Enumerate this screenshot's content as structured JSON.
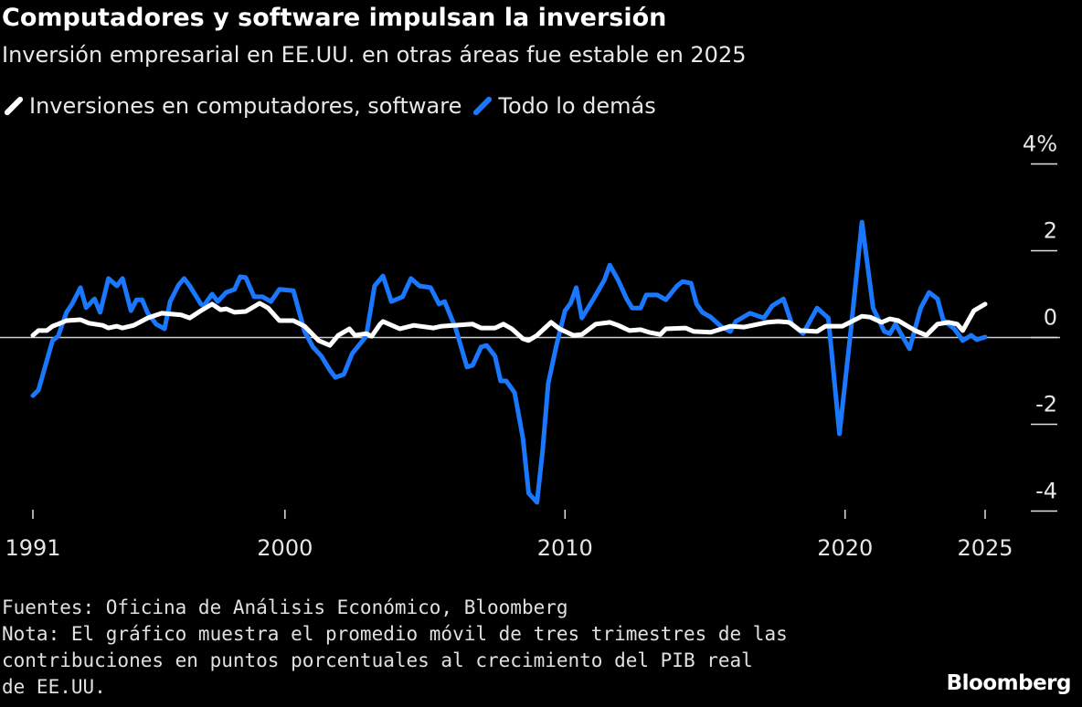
{
  "chart_data": {
    "type": "line",
    "title": "Computadores y software impulsan la inversión",
    "subtitle": "Inversión empresarial en EE.UU. en otras áreas fue estable en 2025",
    "xlabel": "",
    "ylabel": "",
    "xlim": [
      1991,
      2025
    ],
    "ylim": [
      -4,
      4
    ],
    "y_unit": "%",
    "x_ticks": [
      "1991",
      "2000",
      "2010",
      "2020",
      "2025"
    ],
    "x_tick_values": [
      1991,
      2000,
      2010,
      2020,
      2025
    ],
    "y_ticks": [
      "4%",
      "2",
      "0",
      "-2",
      "-4"
    ],
    "y_tick_values": [
      4,
      2,
      0,
      -2,
      -4
    ],
    "grid": false,
    "zero_line": true,
    "legend_position": "top-left",
    "series": [
      {
        "name": "Inversiones en computadores, software",
        "color": "#ffffff",
        "x": [
          1991.0,
          1991.2,
          1991.5,
          1991.7,
          1991.9,
          1992.2,
          1992.7,
          1993.0,
          1993.5,
          1993.7,
          1994.0,
          1994.2,
          1994.6,
          1995.1,
          1995.6,
          1996.3,
          1996.6,
          1997.0,
          1997.4,
          1997.7,
          1997.9,
          1998.2,
          1998.6,
          1999.1,
          1999.4,
          1999.8,
          2000.3,
          2000.7,
          2001.2,
          2001.6,
          2001.9,
          2002.3,
          2002.5,
          2002.9,
          2003.1,
          2003.4,
          2003.5,
          2004.1,
          2004.6,
          2005.3,
          2005.6,
          2006.7,
          2007.0,
          2007.5,
          2007.8,
          2008.1,
          2008.5,
          2008.7,
          2009.0,
          2009.5,
          2009.8,
          2010.3,
          2010.6,
          2011.1,
          2011.6,
          2011.9,
          2012.3,
          2012.7,
          2013.0,
          2013.4,
          2013.6,
          2014.3,
          2014.6,
          2015.2,
          2015.6,
          2015.9,
          2016.4,
          2017.2,
          2017.6,
          2018.0,
          2018.4,
          2019.0,
          2019.3,
          2019.9,
          2020.6,
          2020.9,
          2021.3,
          2021.6,
          2021.9,
          2022.5,
          2022.9,
          2023.3,
          2023.7,
          2024.0,
          2024.2,
          2024.6,
          2025.0
        ],
        "values": [
          0.05,
          0.16,
          0.16,
          0.26,
          0.31,
          0.39,
          0.41,
          0.33,
          0.28,
          0.22,
          0.26,
          0.22,
          0.28,
          0.45,
          0.56,
          0.52,
          0.45,
          0.62,
          0.77,
          0.64,
          0.66,
          0.58,
          0.6,
          0.79,
          0.68,
          0.39,
          0.39,
          0.26,
          -0.07,
          -0.18,
          0.05,
          0.2,
          0.05,
          0.09,
          0.03,
          0.31,
          0.37,
          0.2,
          0.28,
          0.22,
          0.26,
          0.31,
          0.22,
          0.22,
          0.31,
          0.2,
          -0.03,
          -0.07,
          0.05,
          0.35,
          0.2,
          0.05,
          0.07,
          0.31,
          0.35,
          0.28,
          0.16,
          0.18,
          0.12,
          0.07,
          0.2,
          0.22,
          0.14,
          0.12,
          0.2,
          0.26,
          0.24,
          0.35,
          0.37,
          0.35,
          0.16,
          0.14,
          0.26,
          0.26,
          0.49,
          0.47,
          0.35,
          0.43,
          0.39,
          0.16,
          0.05,
          0.31,
          0.35,
          0.31,
          0.16,
          0.62,
          0.77
        ]
      },
      {
        "name": "Todo lo demás",
        "color": "#1a78ff",
        "x": [
          1991.0,
          1991.2,
          1991.7,
          1991.9,
          1992.2,
          1992.4,
          1992.7,
          1992.9,
          1993.2,
          1993.4,
          1993.7,
          1994.0,
          1994.2,
          1994.5,
          1994.7,
          1994.9,
          1995.1,
          1995.4,
          1995.7,
          1995.9,
          1996.2,
          1996.4,
          1996.6,
          1997.0,
          1997.1,
          1997.4,
          1997.6,
          1997.9,
          1998.2,
          1998.4,
          1998.6,
          1998.9,
          1999.2,
          1999.5,
          1999.8,
          2000.3,
          2000.7,
          2001.0,
          2001.3,
          2001.6,
          2001.8,
          2002.1,
          2002.4,
          2002.9,
          2003.2,
          2003.5,
          2003.8,
          2004.2,
          2004.5,
          2004.8,
          2005.2,
          2005.5,
          2005.7,
          2006.1,
          2006.5,
          2006.7,
          2007.0,
          2007.2,
          2007.5,
          2007.7,
          2007.9,
          2008.2,
          2008.5,
          2008.7,
          2009.0,
          2009.2,
          2009.4,
          2009.7,
          2010.0,
          2010.2,
          2010.4,
          2010.6,
          2011.0,
          2011.4,
          2011.6,
          2011.9,
          2012.2,
          2012.4,
          2012.7,
          2012.9,
          2013.3,
          2013.6,
          2014.0,
          2014.2,
          2014.5,
          2014.7,
          2014.9,
          2015.2,
          2015.6,
          2015.9,
          2016.1,
          2016.6,
          2017.1,
          2017.4,
          2017.8,
          2018.1,
          2018.5,
          2019.0,
          2019.4,
          2019.8,
          2020.2,
          2020.6,
          2021.0,
          2021.4,
          2021.6,
          2021.8,
          2022.3,
          2022.7,
          2023.0,
          2023.3,
          2023.5,
          2023.9,
          2024.2,
          2024.5,
          2024.7,
          2025.0
        ],
        "values": [
          -1.34,
          -1.21,
          -0.07,
          0.03,
          0.58,
          0.77,
          1.15,
          0.69,
          0.89,
          0.58,
          1.36,
          1.19,
          1.36,
          0.62,
          0.87,
          0.87,
          0.56,
          0.31,
          0.2,
          0.83,
          1.21,
          1.36,
          1.19,
          0.77,
          0.73,
          1.0,
          0.83,
          1.04,
          1.11,
          1.4,
          1.38,
          0.94,
          0.94,
          0.83,
          1.11,
          1.08,
          0.14,
          -0.22,
          -0.43,
          -0.75,
          -0.92,
          -0.85,
          -0.37,
          0.03,
          1.19,
          1.42,
          0.83,
          0.94,
          1.36,
          1.19,
          1.15,
          0.77,
          0.83,
          0.2,
          -0.68,
          -0.64,
          -0.22,
          -0.18,
          -0.43,
          -1.0,
          -1.0,
          -1.27,
          -2.33,
          -3.59,
          -3.8,
          -2.6,
          -1.06,
          -0.16,
          0.62,
          0.79,
          1.15,
          0.45,
          0.87,
          1.32,
          1.67,
          1.32,
          0.89,
          0.68,
          0.68,
          0.98,
          0.98,
          0.87,
          1.19,
          1.29,
          1.25,
          0.77,
          0.58,
          0.47,
          0.24,
          0.14,
          0.37,
          0.56,
          0.45,
          0.73,
          0.89,
          0.31,
          0.09,
          0.68,
          0.45,
          -2.22,
          0.14,
          2.66,
          0.68,
          0.14,
          0.09,
          0.31,
          -0.26,
          0.68,
          1.04,
          0.89,
          0.41,
          0.2,
          -0.07,
          0.05,
          -0.05,
          0.01
        ]
      }
    ]
  },
  "footer": {
    "sources": "Fuentes: Oficina de Análisis Económico, Bloomberg",
    "note": "Nota: El gráfico muestra el promedio móvil de tres trimestres de las\ncontribuciones en puntos porcentuales al crecimiento del PIB real\nde EE.UU."
  },
  "logo": "Bloomberg"
}
